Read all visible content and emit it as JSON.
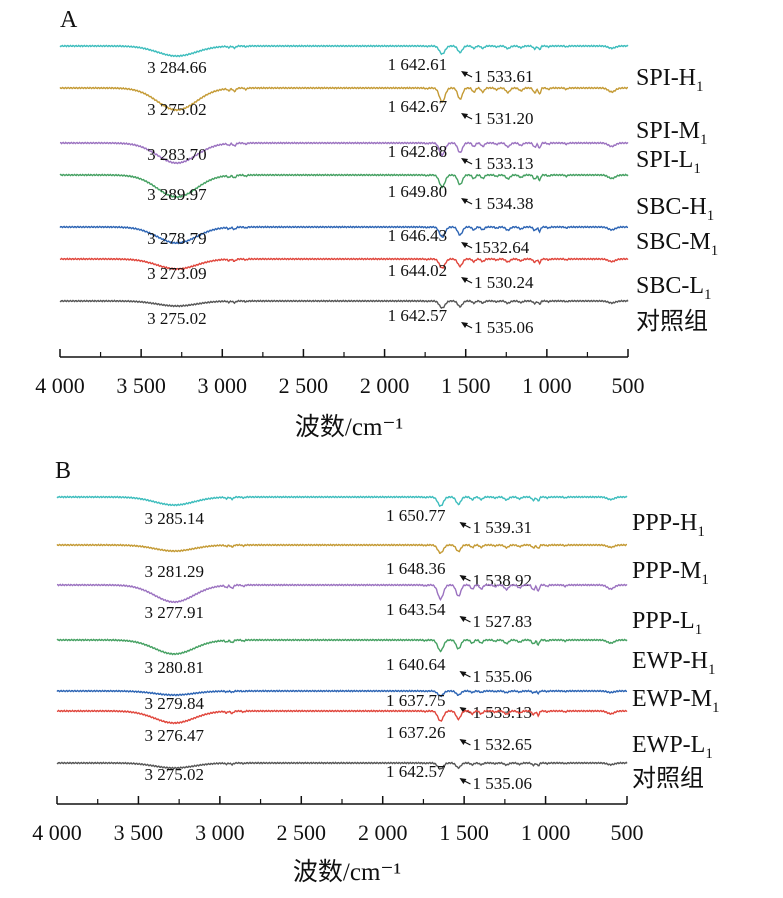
{
  "chart_data": [
    {
      "panel": "A",
      "type": "line",
      "xlabel": "波数/cm⁻¹",
      "xlim": [
        4000,
        500
      ],
      "xticks": [
        4000,
        3500,
        3000,
        2500,
        2000,
        1500,
        1000,
        500
      ],
      "xtick_labels": [
        "4 000",
        "3 500",
        "3 000",
        "2 500",
        "2 000",
        "1 500",
        "1 000",
        "500"
      ],
      "series": [
        {
          "name": "SPI-H",
          "sub": "1",
          "color": "#3dbdbd",
          "peaks": [
            "3 284.66",
            "1 642.61",
            "1 533.61"
          ]
        },
        {
          "name": "SPI-M",
          "sub": "1",
          "color": "#c49a34",
          "peaks": [
            "3 275.02",
            "1 642.67",
            "1 531.20"
          ]
        },
        {
          "name": "SPI-L",
          "sub": "1",
          "color": "#9b72c0",
          "peaks": [
            "3 283.70",
            "1 642.88",
            "1 533.13"
          ]
        },
        {
          "name": "SBC-H",
          "sub": "1",
          "color": "#44a061",
          "peaks": [
            "3 289.97",
            "1 649.80",
            "1 534.38"
          ]
        },
        {
          "name": "SBC-M",
          "sub": "1",
          "color": "#2c64b4",
          "peaks": [
            "3 278.79",
            "1 646.43",
            "1532.64"
          ]
        },
        {
          "name": "SBC-L",
          "sub": "1",
          "color": "#e0453b",
          "peaks": [
            "3 273.09",
            "1 644.02",
            "1 530.24"
          ]
        },
        {
          "name": "对照组",
          "sub": "",
          "color": "#555555",
          "peaks": [
            "3 275.02",
            "1 642.57",
            "1 535.06"
          ]
        }
      ]
    },
    {
      "panel": "B",
      "type": "line",
      "xlabel": "波数/cm⁻¹",
      "xlim": [
        4000,
        500
      ],
      "xticks": [
        4000,
        3500,
        3000,
        2500,
        2000,
        1500,
        1000,
        500
      ],
      "xtick_labels": [
        "4 000",
        "3 500",
        "3 000",
        "2 500",
        "2 000",
        "1 500",
        "1 000",
        "500"
      ],
      "series": [
        {
          "name": "PPP-H",
          "sub": "1",
          "color": "#3dbdbd",
          "peaks": [
            "3 285.14",
            "1 650.77",
            "1 539.31"
          ]
        },
        {
          "name": "PPP-M",
          "sub": "1",
          "color": "#c49a34",
          "peaks": [
            "3 281.29",
            "1 648.36",
            "1 538.92"
          ]
        },
        {
          "name": "PPP-L",
          "sub": "1",
          "color": "#9b72c0",
          "peaks": [
            "3 277.91",
            "1 643.54",
            "1 527.83"
          ]
        },
        {
          "name": "EWP-H",
          "sub": "1",
          "color": "#44a061",
          "peaks": [
            "3 280.81",
            "1 640.64",
            "1 535.06"
          ]
        },
        {
          "name": "EWP-M",
          "sub": "1",
          "color": "#2c64b4",
          "peaks": [
            "3 279.84",
            "1 637.75",
            "1 533.13"
          ]
        },
        {
          "name": "EWP-L",
          "sub": "1",
          "color": "#e0453b",
          "peaks": [
            "3 276.47",
            "1 637.26",
            "1 532.65"
          ]
        },
        {
          "name": "对照组",
          "sub": "",
          "color": "#555555",
          "peaks": [
            "3 275.02",
            "1 642.57",
            "1 535.06"
          ]
        }
      ]
    }
  ]
}
